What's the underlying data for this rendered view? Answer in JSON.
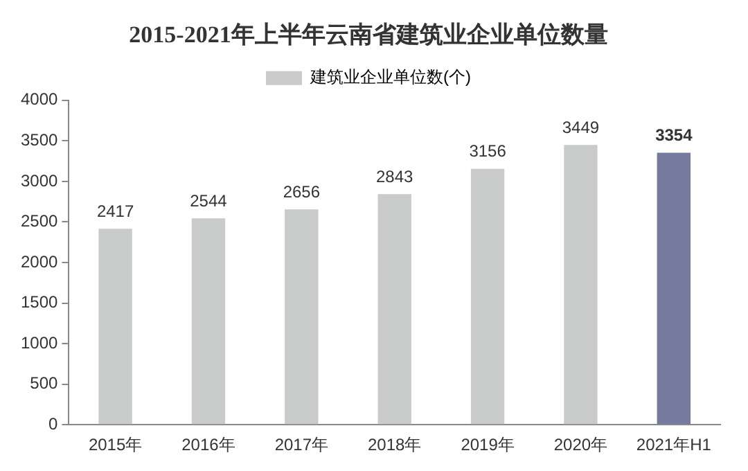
{
  "chart_data": {
    "type": "bar",
    "title": "2015-2021年上半年云南省建筑业企业单位数量",
    "categories": [
      "2015年",
      "2016年",
      "2017年",
      "2018年",
      "2019年",
      "2020年",
      "2021年H1"
    ],
    "series": [
      {
        "name": "建筑业企业单位数(个)",
        "color": "#c8cbc9",
        "colors": [
          "#c8cbc9",
          "#c8cbc9",
          "#c8cbc9",
          "#c8cbc9",
          "#c8cbc9",
          "#c8cbc9",
          "#747b9f"
        ],
        "values": [
          2417,
          2544,
          2656,
          2843,
          3156,
          3449,
          3354
        ]
      }
    ],
    "ylim": [
      0,
      4000
    ],
    "yticks": [
      0,
      500,
      1000,
      1500,
      2000,
      2500,
      3000,
      3500,
      4000
    ],
    "grid": false,
    "legend": "top",
    "data_labels": true
  }
}
